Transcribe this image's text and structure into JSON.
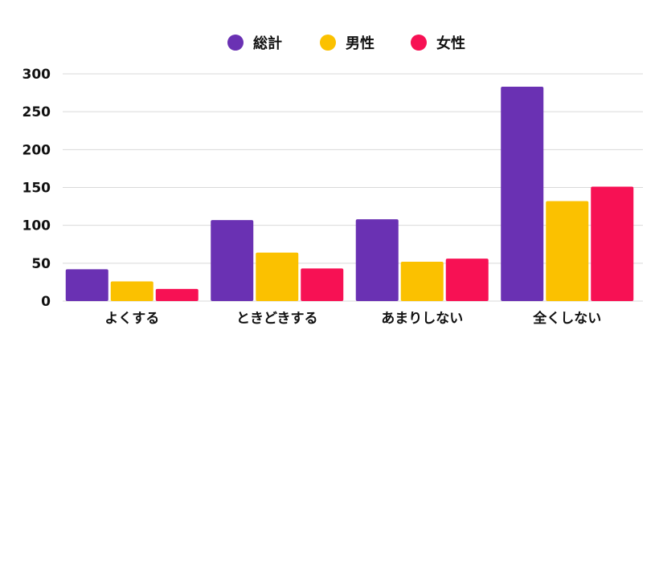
{
  "chart_data": {
    "type": "bar",
    "title": "",
    "xlabel": "",
    "ylabel": "",
    "categories": [
      "よくする",
      "ときどきする",
      "あまりしない",
      "全くしない"
    ],
    "series": [
      {
        "name": "総計",
        "color": "#6a31b3",
        "values": [
          42,
          107,
          108,
          283
        ]
      },
      {
        "name": "男性",
        "color": "#fbc100",
        "values": [
          26,
          64,
          52,
          132
        ]
      },
      {
        "name": "女性",
        "color": "#f71154",
        "values": [
          16,
          43,
          56,
          151
        ]
      }
    ],
    "ylim": [
      0,
      300
    ],
    "yticks": [
      0,
      50,
      100,
      150,
      200,
      250,
      300
    ],
    "grid": true,
    "legend_position": "top-center"
  }
}
